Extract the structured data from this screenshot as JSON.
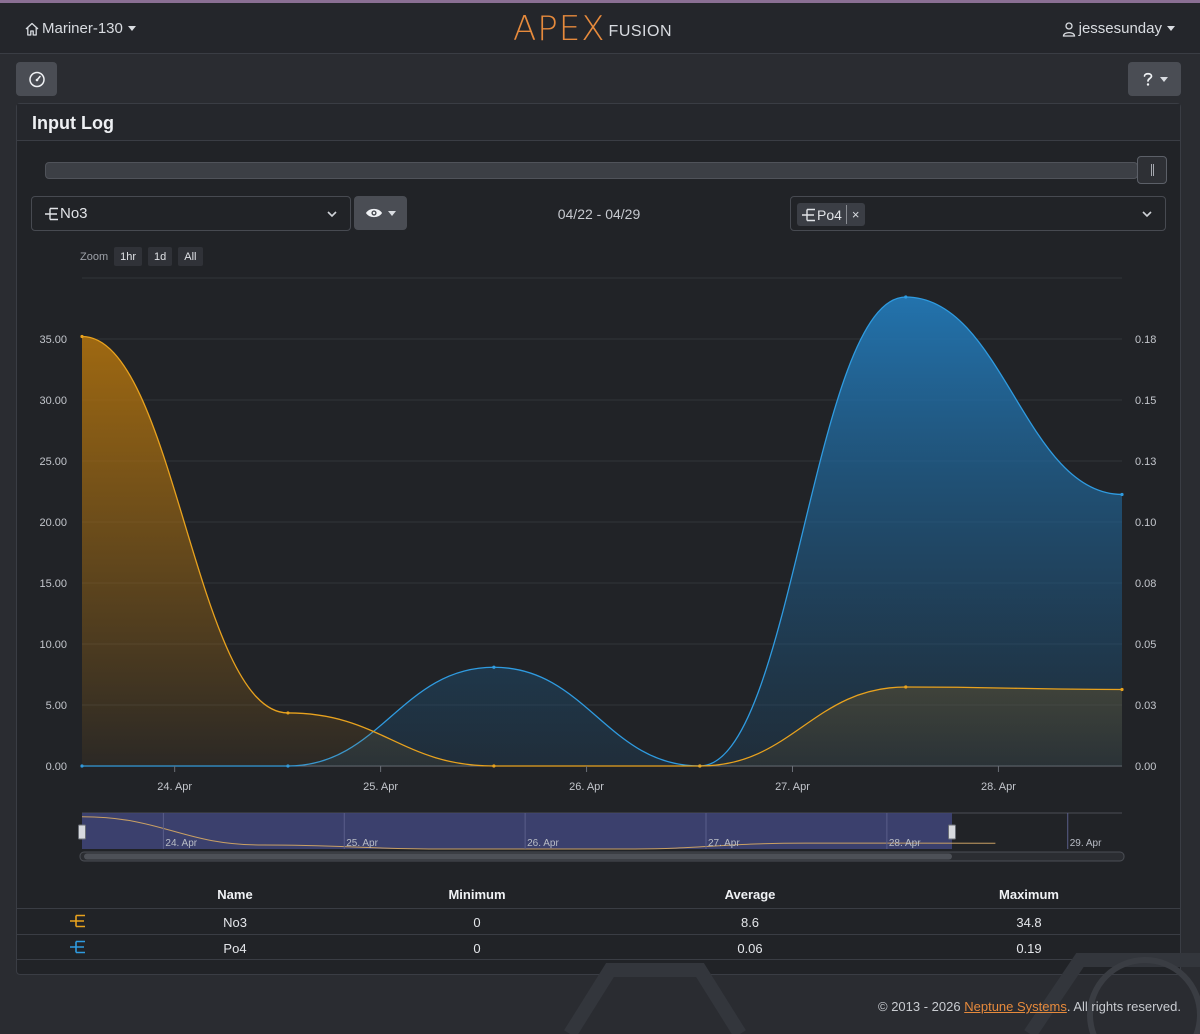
{
  "nav": {
    "device_name": "Mariner-130",
    "brand_apex": "APEX",
    "brand_fusion": "FUSION",
    "username": "jessesunday"
  },
  "panel": {
    "title": "Input Log",
    "primary_select": "No3",
    "date_range": "04/22 - 04/29",
    "secondary_chip": "Po4",
    "chip_remove": "×"
  },
  "zoom": {
    "label": "Zoom",
    "options": [
      "1hr",
      "1d",
      "All"
    ]
  },
  "colors": {
    "no3": "#e8a21e",
    "po4": "#2f9be0",
    "accent": "#e68a3c"
  },
  "chart_data": {
    "type": "area",
    "x_ticks": [
      "24. Apr",
      "25. Apr",
      "26. Apr",
      "27. Apr",
      "28. Apr"
    ],
    "y_left_ticks": [
      "0.00",
      "5.00",
      "10.00",
      "15.00",
      "20.00",
      "25.00",
      "30.00",
      "35.00"
    ],
    "y_right_ticks": [
      "0.00",
      "0.03",
      "0.05",
      "0.08",
      "0.10",
      "0.13",
      "0.15",
      "0.18"
    ],
    "ylim_left": [
      0,
      35
    ],
    "ylim_right": [
      0,
      0.175
    ],
    "series": [
      {
        "name": "No3",
        "axis": "left",
        "points": [
          [
            23.55,
            34.8
          ],
          [
            24.55,
            4.3
          ],
          [
            25.55,
            0
          ],
          [
            26.55,
            0
          ],
          [
            27.55,
            6.4
          ],
          [
            28.6,
            6.2
          ]
        ]
      },
      {
        "name": "Po4",
        "axis": "right",
        "points": [
          [
            23.55,
            0
          ],
          [
            24.55,
            0
          ],
          [
            25.55,
            0.04
          ],
          [
            26.55,
            0
          ],
          [
            27.55,
            0.19
          ],
          [
            28.6,
            0.11
          ]
        ]
      }
    ],
    "navigator_ticks": [
      "24. Apr",
      "25. Apr",
      "26. Apr",
      "27. Apr",
      "28. Apr",
      "29. Apr"
    ]
  },
  "stats": {
    "headers": [
      "Name",
      "Minimum",
      "Average",
      "Maximum"
    ],
    "rows": [
      {
        "name": "No3",
        "min": "0",
        "avg": "8.6",
        "max": "34.8"
      },
      {
        "name": "Po4",
        "min": "0",
        "avg": "0.06",
        "max": "0.19"
      }
    ]
  },
  "footer": {
    "copyright": "© 2013 - 2026",
    "company": "Neptune Systems",
    "rights": ". All rights reserved."
  }
}
